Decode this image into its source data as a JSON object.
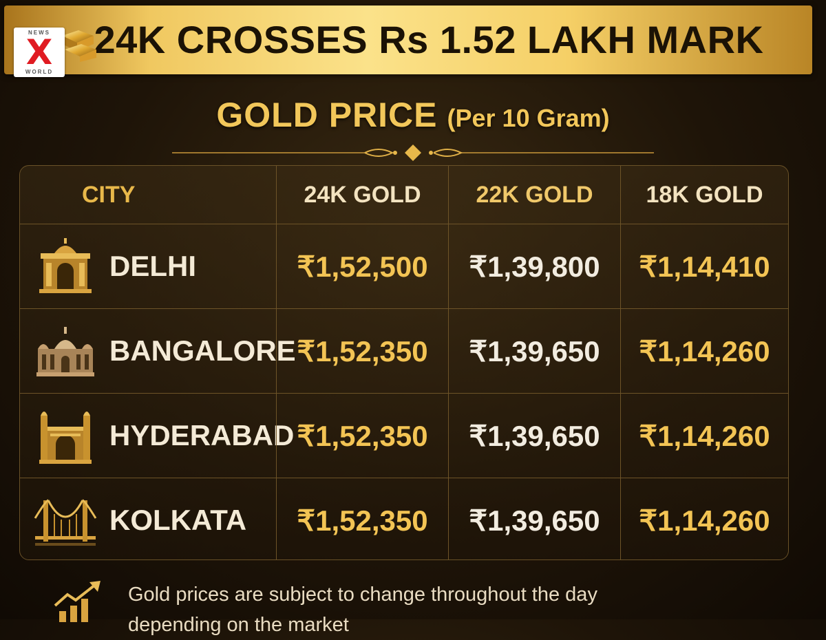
{
  "banner": {
    "title": "24K CROSSES Rs 1.52 LAKH MARK",
    "logo": {
      "top": "NEWS",
      "mark": "X",
      "bottom": "WORLD"
    }
  },
  "subtitle": {
    "main": "GOLD PRICE",
    "unit": "(Per 10 Gram)"
  },
  "table": {
    "headers": [
      "CITY",
      "24K GOLD",
      "22K GOLD",
      "18K GOLD"
    ],
    "rows": [
      {
        "city": "DELHI",
        "icon": "india-gate-icon",
        "k24": "₹1,52,500",
        "k22": "₹1,39,800",
        "k18": "₹1,14,410"
      },
      {
        "city": "BANGALORE",
        "icon": "vidhana-soudha-icon",
        "k24": "₹1,52,350",
        "k22": "₹1,39,650",
        "k18": "₹1,14,260"
      },
      {
        "city": "HYDERABAD",
        "icon": "charminar-icon",
        "k24": "₹1,52,350",
        "k22": "₹1,39,650",
        "k18": "₹1,14,260"
      },
      {
        "city": "KOLKATA",
        "icon": "howrah-bridge-icon",
        "k24": "₹1,52,350",
        "k22": "₹1,39,650",
        "k18": "₹1,14,260"
      }
    ]
  },
  "footnote": {
    "line1": "Gold prices are subject to change throughout the day",
    "line2": "depending on the market"
  },
  "colors": {
    "gold": "#f3c454",
    "banner_gold": "#fbe28a",
    "background": "#1e1408",
    "logo_red": "#e01b22"
  }
}
